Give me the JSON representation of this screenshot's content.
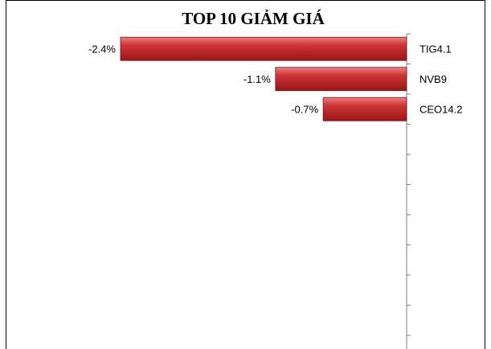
{
  "chart_data": {
    "type": "bar",
    "orientation": "horizontal",
    "title": "TOP 10 GIẢM GIÁ",
    "xlabel": "",
    "ylabel": "",
    "categories": [
      "TIG4.1",
      "NVB9",
      "CEO14.2"
    ],
    "values": [
      -2.4,
      -1.1,
      -0.7
    ],
    "value_labels": [
      "-2.4%",
      "-1.1%",
      "-0.7%"
    ],
    "category_slots": 10,
    "xlim": [
      -2.6,
      0
    ],
    "grid": false,
    "legend": "none",
    "colors": {
      "bar": "#c0282a",
      "bar_highlight": "#e87a7a",
      "bar_dark": "#8e1416"
    }
  }
}
